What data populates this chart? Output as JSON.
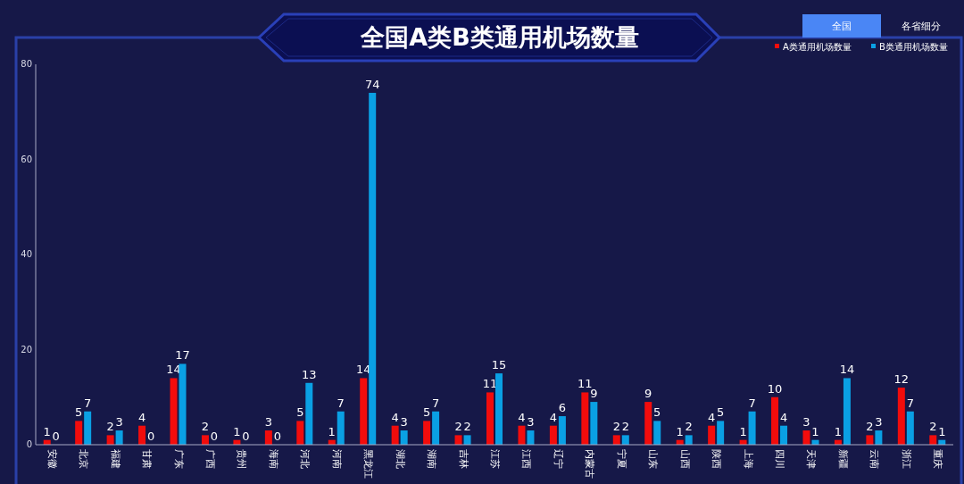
{
  "chart_data": {
    "type": "bar",
    "title": "全国A类B类通用机场数量",
    "annotations": [
      "全国",
      "各省细分"
    ],
    "categories": [
      "安徽",
      "北京",
      "福建",
      "甘肃",
      "广东",
      "广西",
      "贵州",
      "海南",
      "河北",
      "河南",
      "黑龙江",
      "湖北",
      "湖南",
      "吉林",
      "江苏",
      "江西",
      "辽宁",
      "内蒙古",
      "宁夏",
      "山东",
      "山西",
      "陕西",
      "上海",
      "四川",
      "天津",
      "新疆",
      "云南",
      "浙江",
      "重庆"
    ],
    "series": [
      {
        "name": "A类通用机场数量",
        "color": "#f20c0c",
        "values": [
          1,
          5,
          2,
          4,
          14,
          2,
          1,
          3,
          5,
          1,
          14,
          4,
          5,
          2,
          11,
          4,
          4,
          11,
          2,
          9,
          1,
          4,
          1,
          10,
          3,
          1,
          2,
          12,
          2
        ]
      },
      {
        "name": "B类通用机场数量",
        "color": "#0aa0e4",
        "values": [
          0,
          7,
          3,
          0,
          17,
          0,
          0,
          0,
          13,
          7,
          74,
          3,
          7,
          2,
          15,
          3,
          6,
          9,
          2,
          5,
          2,
          5,
          7,
          4,
          1,
          14,
          3,
          7,
          1
        ]
      }
    ],
    "ylim": [
      0,
      80
    ],
    "yticks": [
      0,
      20,
      40,
      60,
      80
    ],
    "grid": false,
    "legend": "top right",
    "data_labels": true
  }
}
